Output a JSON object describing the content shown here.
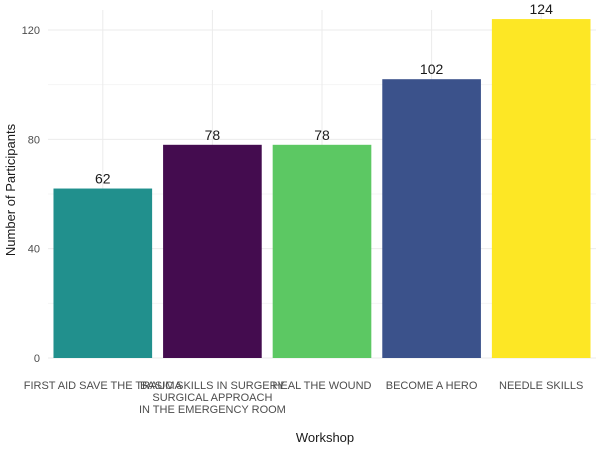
{
  "chart_data": {
    "type": "bar",
    "title": "",
    "xlabel": "Workshop",
    "ylabel": "Number of Participants",
    "ylim": [
      0,
      128
    ],
    "yticks": [
      0,
      40,
      80,
      120
    ],
    "grid": true,
    "categories": [
      [
        "FIRST AID SAVE THE TRAUMA"
      ],
      [
        "BASIC SKILLS IN SURGERY",
        "SURGICAL APPROACH",
        "IN THE EMERGENCY ROOM"
      ],
      [
        "HEAL THE WOUND"
      ],
      [
        "BECOME A HERO"
      ],
      [
        "NEEDLE SKILLS"
      ]
    ],
    "values": [
      62,
      78,
      78,
      102,
      124
    ],
    "colors": [
      "#21908d",
      "#440c4f",
      "#5cc863",
      "#3b528b",
      "#fde725"
    ]
  }
}
